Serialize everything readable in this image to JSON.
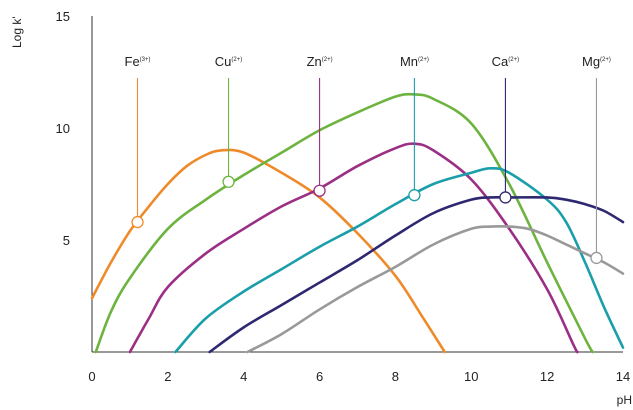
{
  "chart_data": {
    "type": "line",
    "title": "",
    "xlabel": "pH",
    "ylabel": "Log k'",
    "xlim": [
      0,
      14
    ],
    "ylim": [
      0,
      15
    ],
    "xticks": [
      "0",
      "2",
      "4",
      "6",
      "8",
      "10",
      "12",
      "14"
    ],
    "yticks": [
      "5",
      "10",
      "15"
    ],
    "grid": false,
    "series": [
      {
        "name": "Fe",
        "superscript": "(3+)",
        "color": "#ee8a2a",
        "label_x": 1.2,
        "marker": [
          1.2,
          5.8
        ],
        "points": [
          [
            0.0,
            2.4
          ],
          [
            0.5,
            4.0
          ],
          [
            1.0,
            5.4
          ],
          [
            1.5,
            6.5
          ],
          [
            2.0,
            7.5
          ],
          [
            2.5,
            8.3
          ],
          [
            3.0,
            8.8
          ],
          [
            3.4,
            9.0
          ],
          [
            4.0,
            8.9
          ],
          [
            5.0,
            8.0
          ],
          [
            6.0,
            6.9
          ],
          [
            7.0,
            5.3
          ],
          [
            8.0,
            3.4
          ],
          [
            8.7,
            1.6
          ],
          [
            9.3,
            0.0
          ]
        ]
      },
      {
        "name": "Cu",
        "superscript": "(2+)",
        "color": "#6db33f",
        "label_x": 3.6,
        "marker": [
          3.6,
          7.6
        ],
        "points": [
          [
            0.1,
            0.0
          ],
          [
            0.5,
            1.8
          ],
          [
            1.0,
            3.3
          ],
          [
            2.0,
            5.5
          ],
          [
            3.0,
            6.8
          ],
          [
            4.0,
            7.9
          ],
          [
            5.0,
            8.9
          ],
          [
            6.0,
            9.9
          ],
          [
            7.0,
            10.7
          ],
          [
            8.0,
            11.4
          ],
          [
            8.5,
            11.5
          ],
          [
            9.0,
            11.3
          ],
          [
            10.0,
            10.2
          ],
          [
            11.0,
            7.5
          ],
          [
            12.0,
            4.0
          ],
          [
            13.0,
            0.6
          ],
          [
            13.2,
            0.0
          ]
        ]
      },
      {
        "name": "Zn",
        "superscript": "(2+)",
        "color": "#9b2f85",
        "label_x": 6.0,
        "marker": [
          6.0,
          7.2
        ],
        "points": [
          [
            1.0,
            0.0
          ],
          [
            1.5,
            1.5
          ],
          [
            2.0,
            2.9
          ],
          [
            3.0,
            4.4
          ],
          [
            4.0,
            5.5
          ],
          [
            5.0,
            6.5
          ],
          [
            6.0,
            7.3
          ],
          [
            7.0,
            8.3
          ],
          [
            8.0,
            9.1
          ],
          [
            8.5,
            9.3
          ],
          [
            9.0,
            9.0
          ],
          [
            10.0,
            7.7
          ],
          [
            11.0,
            5.5
          ],
          [
            12.0,
            2.8
          ],
          [
            12.7,
            0.3
          ],
          [
            12.8,
            0.0
          ]
        ]
      },
      {
        "name": "Mn",
        "superscript": "(2+)",
        "color": "#1a9faa",
        "label_x": 8.5,
        "marker": [
          8.5,
          7.0
        ],
        "points": [
          [
            2.2,
            0.0
          ],
          [
            3.0,
            1.5
          ],
          [
            4.0,
            2.7
          ],
          [
            5.0,
            3.7
          ],
          [
            6.0,
            4.7
          ],
          [
            7.0,
            5.6
          ],
          [
            8.0,
            6.6
          ],
          [
            9.0,
            7.5
          ],
          [
            10.0,
            8.0
          ],
          [
            10.5,
            8.2
          ],
          [
            11.0,
            8.0
          ],
          [
            12.0,
            6.8
          ],
          [
            12.5,
            5.8
          ],
          [
            13.0,
            4.0
          ],
          [
            13.5,
            2.0
          ],
          [
            14.0,
            0.2
          ]
        ]
      },
      {
        "name": "Ca",
        "superscript": "(2+)",
        "color": "#2d2870",
        "label_x": 10.9,
        "marker": [
          10.9,
          6.9
        ],
        "points": [
          [
            3.1,
            0.0
          ],
          [
            4.0,
            1.1
          ],
          [
            5.0,
            2.1
          ],
          [
            6.0,
            3.1
          ],
          [
            7.0,
            4.1
          ],
          [
            8.0,
            5.2
          ],
          [
            9.0,
            6.2
          ],
          [
            10.0,
            6.8
          ],
          [
            10.5,
            6.9
          ],
          [
            11.0,
            6.9
          ],
          [
            12.0,
            6.9
          ],
          [
            12.5,
            6.8
          ],
          [
            13.0,
            6.6
          ],
          [
            13.5,
            6.3
          ],
          [
            14.0,
            5.8
          ]
        ]
      },
      {
        "name": "Mg",
        "superscript": "(2+)",
        "color": "#999999",
        "label_x": 13.3,
        "marker": [
          13.3,
          4.2
        ],
        "points": [
          [
            4.1,
            0.0
          ],
          [
            5.0,
            0.8
          ],
          [
            6.0,
            1.9
          ],
          [
            7.0,
            2.9
          ],
          [
            8.0,
            3.8
          ],
          [
            9.0,
            4.8
          ],
          [
            10.0,
            5.5
          ],
          [
            10.5,
            5.6
          ],
          [
            11.0,
            5.6
          ],
          [
            11.5,
            5.5
          ],
          [
            12.0,
            5.2
          ],
          [
            12.5,
            4.8
          ],
          [
            13.0,
            4.4
          ],
          [
            13.5,
            4.0
          ],
          [
            14.0,
            3.5
          ]
        ]
      }
    ]
  }
}
